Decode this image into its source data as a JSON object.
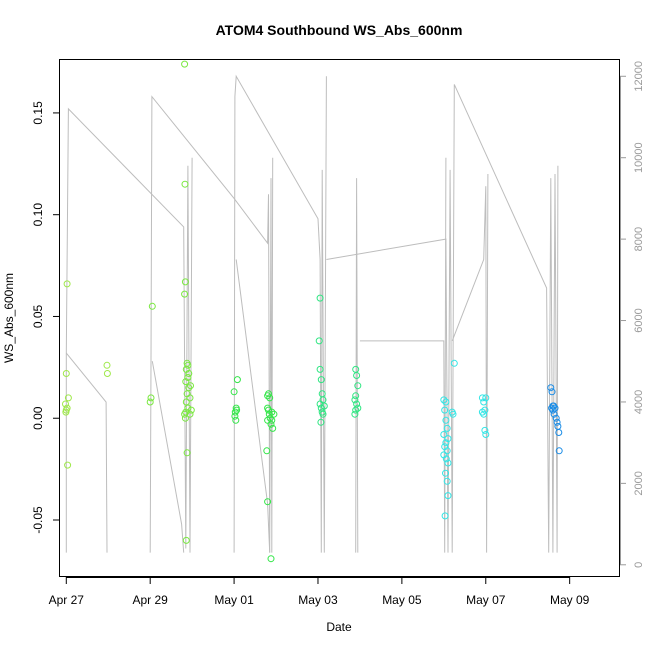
{
  "chart_data": {
    "type": "scatter",
    "title": "ATOM4 Southbound WS_Abs_600nm",
    "xlabel": "Date",
    "ylabel": "WS_Abs_600nm",
    "xlim": [
      -0.15,
      13.2
    ],
    "ylim": [
      -0.078,
      0.176
    ],
    "x_unit": "days since Apr 27",
    "x_ticks": [
      {
        "value": 0,
        "label": "Apr 27"
      },
      {
        "value": 2,
        "label": "Apr 29"
      },
      {
        "value": 4,
        "label": "May 01"
      },
      {
        "value": 6,
        "label": "May 03"
      },
      {
        "value": 8,
        "label": "May 05"
      },
      {
        "value": 10,
        "label": "May 07"
      },
      {
        "value": 12,
        "label": "May 09"
      }
    ],
    "y_ticks": [
      {
        "value": -0.05,
        "label": "-0.05"
      },
      {
        "value": 0.0,
        "label": "0.00"
      },
      {
        "value": 0.05,
        "label": "0.05"
      },
      {
        "value": 0.1,
        "label": "0.10"
      },
      {
        "value": 0.15,
        "label": "0.15"
      }
    ],
    "y2lim": [
      -300,
      12400
    ],
    "y2_ticks": [
      {
        "value": 0,
        "label": "0"
      },
      {
        "value": 2000,
        "label": "2000"
      },
      {
        "value": 4000,
        "label": "4000"
      },
      {
        "value": 6000,
        "label": "6000"
      },
      {
        "value": 8000,
        "label": "8000"
      },
      {
        "value": 10000,
        "label": "10000"
      },
      {
        "value": 12000,
        "label": "12000"
      }
    ],
    "series": [
      {
        "name": "",
        "color": "#9fe84a",
        "points": [
          [
            0.02,
            0.066
          ],
          [
            0.0,
            0.022
          ],
          [
            0.05,
            0.01
          ],
          [
            -0.02,
            0.007
          ],
          [
            0.0,
            0.004
          ],
          [
            0.02,
            0.005
          ],
          [
            -0.01,
            0.003
          ],
          [
            0.03,
            -0.023
          ],
          [
            0.97,
            0.026
          ],
          [
            0.98,
            0.022
          ]
        ]
      },
      {
        "name": "",
        "color": "#7ae840",
        "points": [
          [
            2.05,
            0.055
          ],
          [
            2.02,
            0.01
          ],
          [
            2.0,
            0.008
          ],
          [
            2.82,
            0.174
          ],
          [
            2.83,
            0.115
          ],
          [
            2.84,
            0.067
          ],
          [
            2.82,
            0.061
          ],
          [
            2.88,
            0.027
          ],
          [
            2.86,
            0.024
          ],
          [
            2.9,
            0.02
          ],
          [
            2.85,
            0.018
          ],
          [
            2.92,
            0.015
          ],
          [
            2.88,
            0.012
          ],
          [
            2.95,
            0.01
          ],
          [
            2.86,
            0.008
          ],
          [
            2.9,
            0.005
          ],
          [
            2.85,
            0.003
          ],
          [
            2.82,
            0.002
          ],
          [
            2.95,
            0.002
          ],
          [
            2.84,
            0.0
          ],
          [
            2.9,
            0.026
          ],
          [
            2.92,
            0.022
          ],
          [
            2.96,
            0.016
          ],
          [
            2.98,
            0.004
          ],
          [
            2.88,
            -0.017
          ],
          [
            2.86,
            -0.06
          ]
        ]
      },
      {
        "name": "",
        "color": "#33e648",
        "points": [
          [
            4.08,
            0.019
          ],
          [
            4.0,
            0.013
          ],
          [
            4.05,
            0.005
          ],
          [
            4.03,
            0.003
          ],
          [
            4.02,
            0.001
          ],
          [
            4.06,
            0.004
          ],
          [
            4.04,
            -0.001
          ],
          [
            4.8,
            0.011
          ],
          [
            4.82,
            0.012
          ],
          [
            4.85,
            0.01
          ],
          [
            4.8,
            0.005
          ],
          [
            4.82,
            0.004
          ],
          [
            4.9,
            0.003
          ],
          [
            4.84,
            0.002
          ],
          [
            4.95,
            0.002
          ],
          [
            4.86,
            0.0
          ],
          [
            4.8,
            -0.001
          ],
          [
            4.9,
            -0.001
          ],
          [
            4.92,
            -0.005
          ],
          [
            4.88,
            -0.003
          ],
          [
            4.78,
            -0.016
          ],
          [
            4.8,
            -0.041
          ],
          [
            4.88,
            -0.069
          ]
        ]
      },
      {
        "name": "",
        "color": "#2fe682",
        "points": [
          [
            6.05,
            0.059
          ],
          [
            6.03,
            0.038
          ],
          [
            6.05,
            0.024
          ],
          [
            6.08,
            0.019
          ],
          [
            6.1,
            0.012
          ],
          [
            6.12,
            0.009
          ],
          [
            6.05,
            0.007
          ],
          [
            6.15,
            0.006
          ],
          [
            6.08,
            0.005
          ],
          [
            6.1,
            0.003
          ],
          [
            6.12,
            0.002
          ],
          [
            6.07,
            -0.002
          ],
          [
            6.9,
            0.024
          ],
          [
            6.92,
            0.021
          ],
          [
            6.95,
            0.016
          ],
          [
            6.9,
            0.011
          ],
          [
            6.88,
            0.009
          ],
          [
            6.92,
            0.007
          ],
          [
            6.95,
            0.005
          ],
          [
            6.9,
            0.004
          ],
          [
            6.88,
            0.002
          ]
        ]
      },
      {
        "name": "",
        "color": "#33e6e6",
        "points": [
          [
            9.25,
            0.027
          ],
          [
            9.0,
            0.009
          ],
          [
            9.05,
            0.008
          ],
          [
            9.02,
            0.004
          ],
          [
            9.2,
            0.003
          ],
          [
            9.22,
            0.002
          ],
          [
            9.05,
            -0.001
          ],
          [
            9.08,
            -0.005
          ],
          [
            9.0,
            -0.008
          ],
          [
            9.1,
            -0.01
          ],
          [
            9.05,
            -0.012
          ],
          [
            9.02,
            -0.014
          ],
          [
            9.08,
            -0.016
          ],
          [
            9.0,
            -0.018
          ],
          [
            9.06,
            -0.02
          ],
          [
            9.1,
            -0.022
          ],
          [
            9.04,
            -0.027
          ],
          [
            9.08,
            -0.031
          ],
          [
            9.1,
            -0.038
          ],
          [
            9.03,
            -0.048
          ],
          [
            9.92,
            0.01
          ],
          [
            9.95,
            0.008
          ],
          [
            10.0,
            0.01
          ],
          [
            9.98,
            0.004
          ],
          [
            9.92,
            0.003
          ],
          [
            9.95,
            0.002
          ],
          [
            9.98,
            -0.006
          ],
          [
            10.0,
            -0.008
          ]
        ]
      },
      {
        "name": "",
        "color": "#1a8ce6",
        "points": [
          [
            11.55,
            0.015
          ],
          [
            11.58,
            0.013
          ],
          [
            11.6,
            0.006
          ],
          [
            11.57,
            0.005
          ],
          [
            11.62,
            0.006
          ],
          [
            11.65,
            0.005
          ],
          [
            11.6,
            0.004
          ],
          [
            11.63,
            0.002
          ],
          [
            11.68,
            0.0
          ],
          [
            11.7,
            -0.002
          ],
          [
            11.72,
            -0.004
          ],
          [
            11.74,
            -0.007
          ],
          [
            11.75,
            -0.016
          ]
        ]
      }
    ],
    "altitude_series": {
      "name": "",
      "color": "#bdbdbd",
      "segments": [
        [
          [
            0.0,
            300
          ],
          [
            0.0,
            5200
          ],
          [
            0.05,
            11200
          ],
          [
            2.8,
            8300
          ],
          [
            2.85,
            400
          ],
          [
            2.9,
            9800
          ],
          [
            2.95,
            300
          ],
          [
            3.0,
            10000
          ]
        ],
        [
          [
            0.0,
            5200
          ],
          [
            0.95,
            4000
          ],
          [
            0.97,
            300
          ]
        ],
        [
          [
            2.0,
            300
          ],
          [
            2.02,
            5000
          ],
          [
            2.04,
            11500
          ],
          [
            4.0,
            9000
          ],
          [
            4.8,
            7900
          ],
          [
            4.82,
            9100
          ],
          [
            4.85,
            300
          ],
          [
            4.88,
            9500
          ],
          [
            4.9,
            300
          ],
          [
            4.92,
            10000
          ]
        ],
        [
          [
            2.05,
            5000
          ],
          [
            2.75,
            1000
          ],
          [
            2.8,
            300
          ]
        ],
        [
          [
            4.0,
            300
          ],
          [
            4.02,
            11500
          ],
          [
            4.05,
            12000
          ],
          [
            6.0,
            8500
          ],
          [
            6.05,
            7500
          ],
          [
            6.08,
            300
          ],
          [
            6.1,
            9700
          ],
          [
            6.15,
            300
          ],
          [
            6.2,
            12000
          ]
        ],
        [
          [
            4.05,
            7500
          ],
          [
            4.8,
            1500
          ],
          [
            4.85,
            300
          ]
        ],
        [
          [
            6.2,
            7500
          ],
          [
            9.05,
            8000
          ],
          [
            9.1,
            300
          ],
          [
            9.15,
            9700
          ],
          [
            9.2,
            300
          ],
          [
            9.25,
            11800
          ],
          [
            11.45,
            6800
          ],
          [
            11.5,
            300
          ],
          [
            11.55,
            9500
          ],
          [
            11.6,
            300
          ],
          [
            11.65,
            9600
          ],
          [
            11.7,
            300
          ],
          [
            11.72,
            9800
          ]
        ],
        [
          [
            6.9,
            300
          ],
          [
            6.92,
            9500
          ],
          [
            6.95,
            300
          ]
        ],
        [
          [
            7.0,
            5500
          ],
          [
            9.0,
            5500
          ],
          [
            9.02,
            300
          ],
          [
            9.05,
            10000
          ]
        ],
        [
          [
            9.2,
            5500
          ],
          [
            9.95,
            7500
          ],
          [
            10.0,
            9300
          ],
          [
            10.02,
            300
          ],
          [
            10.05,
            9600
          ]
        ]
      ]
    }
  }
}
